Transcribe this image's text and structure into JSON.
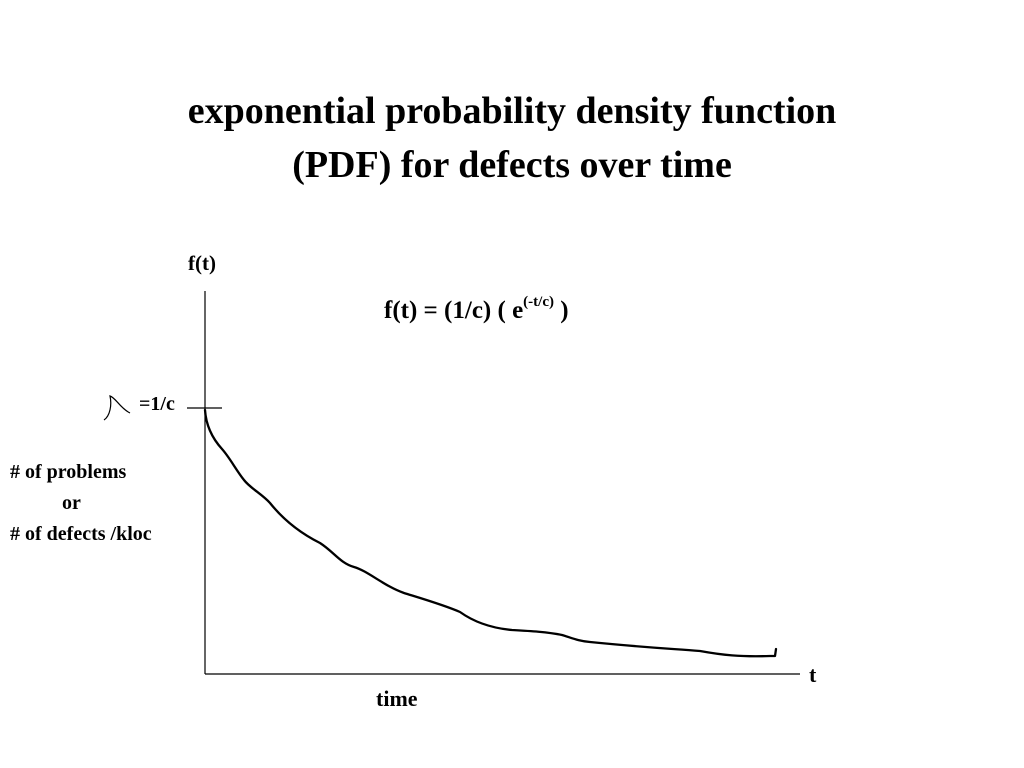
{
  "title": {
    "line1": "exponential probability density function",
    "line2": "(PDF) for defects over time"
  },
  "diagram": {
    "y_axis_symbol": "f(t)",
    "formula_main": "f(t) =  (1/c) ( e",
    "formula_exponent": "(-t/c)",
    "formula_close": " )",
    "intercept_label": "=1/c",
    "y_label_line1": "# of problems",
    "y_label_line2": "or",
    "y_label_line3": "# of defects /kloc",
    "x_axis_symbol": "t",
    "x_label": "time"
  }
}
